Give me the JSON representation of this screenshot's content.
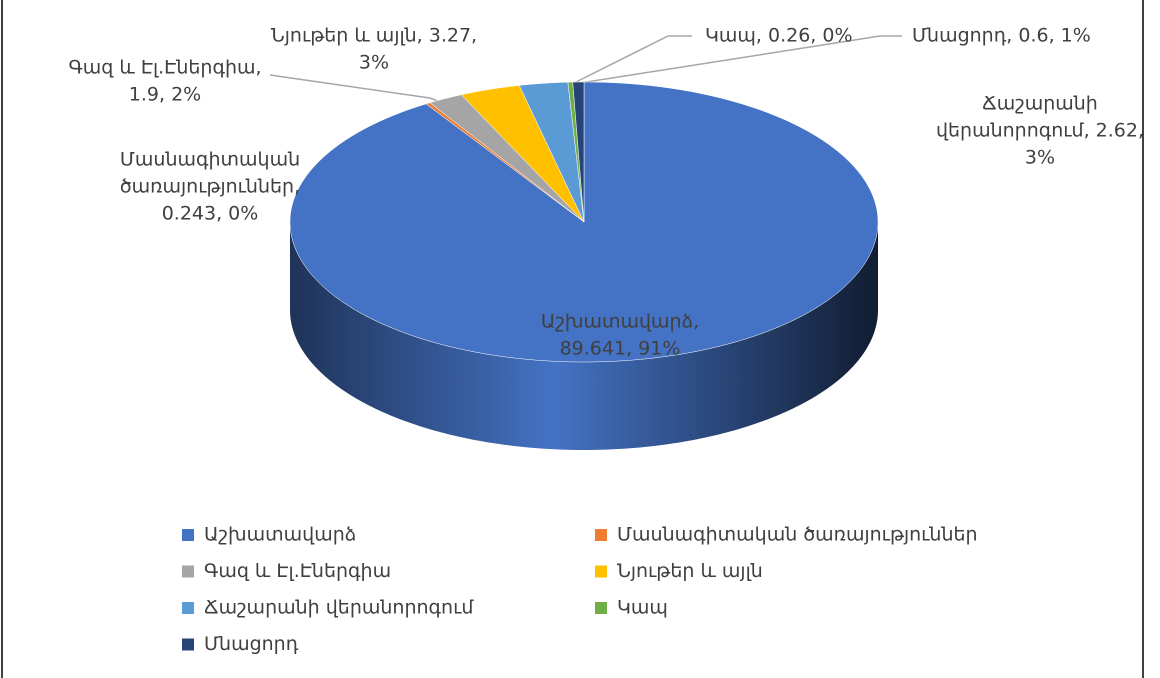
{
  "chart_data": {
    "type": "pie3d",
    "categories": [
      "Աշխատավարձ",
      "Մասնագիտական ծառայություններ",
      "Գազ և Էլ.Էներգիա",
      "Նյութեր և այլն",
      "Ճաշարանի վերանորոգում",
      "Կապ",
      "Մնացորդ"
    ],
    "values": [
      89.641,
      0.243,
      1.9,
      3.27,
      2.62,
      0.26,
      0.6
    ],
    "value_labels": [
      [
        "Աշխատավարձ,",
        "89.641, 91%"
      ],
      [
        "Մասնագիտական",
        "ծառայություններ,",
        "0.243, 0%"
      ],
      [
        "Գազ և Էլ.Էներգիա,",
        "1.9, 2%"
      ],
      [
        "Նյութեր և այլն, 3.27,",
        "3%"
      ],
      [
        "Ճաշարանի",
        "վերանորոգում, 2.62,",
        "3%"
      ],
      [
        "Կապ, 0.26, 0%"
      ],
      [
        "Մնացորդ, 0.6, 1%"
      ]
    ],
    "colors": [
      "#4472c4",
      "#ed7d31",
      "#a5a5a5",
      "#ffc000",
      "#5b9bd5",
      "#70ad47",
      "#264478"
    ],
    "legend": "bottom"
  }
}
